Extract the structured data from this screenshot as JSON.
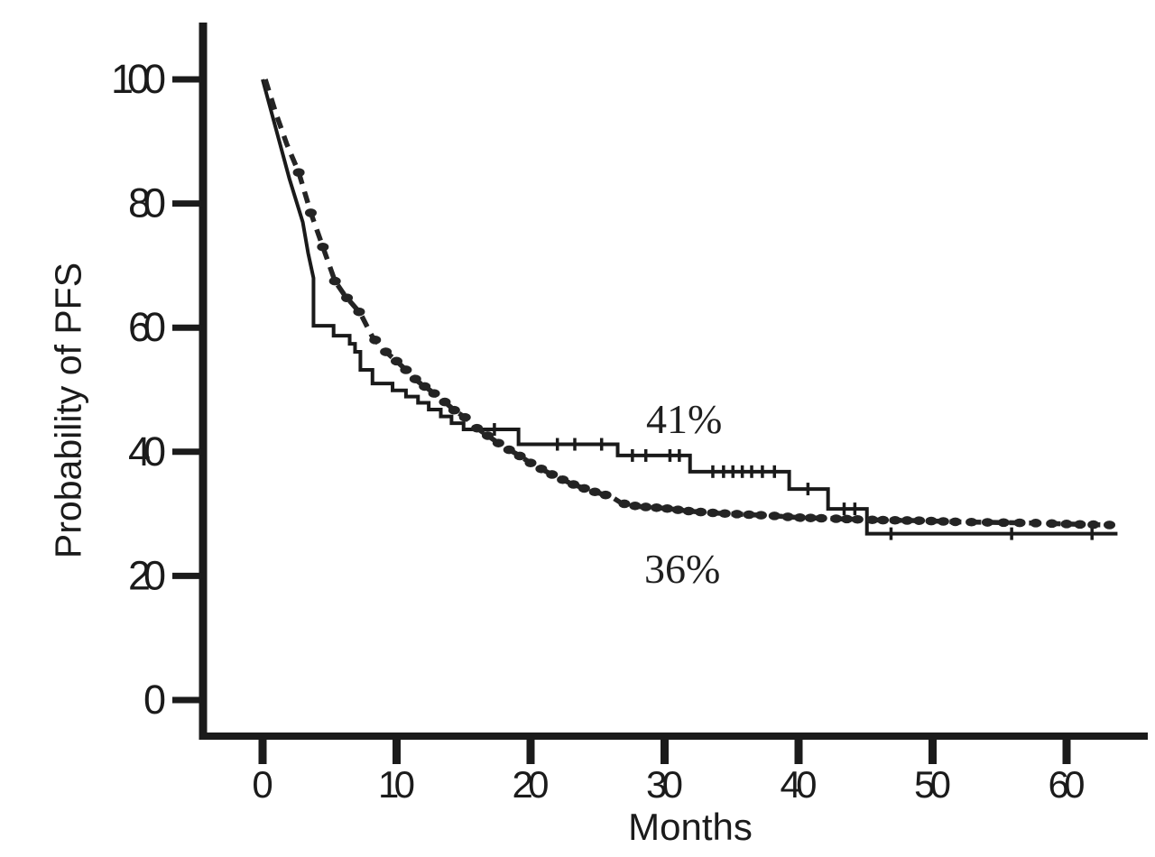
{
  "figure": {
    "background": "#ffffff",
    "ink_color": "#1b1b1b"
  },
  "chart_data": {
    "type": "line",
    "chart_kind": "kaplan-meier-survival",
    "title": "",
    "xlabel": "Months",
    "ylabel": "Probability of PFS",
    "xlim": [
      0,
      64
    ],
    "ylim": [
      0,
      100
    ],
    "x_ticks": [
      0,
      10,
      20,
      30,
      40,
      50,
      60
    ],
    "y_ticks": [
      0,
      20,
      40,
      60,
      80,
      100
    ],
    "grid": false,
    "legend": "none",
    "annotations": [
      {
        "text": "41%",
        "refers_to": "solid step curve"
      },
      {
        "text": "36%",
        "refers_to": "dashed curve"
      }
    ],
    "series": [
      {
        "name": "solid step curve",
        "style": "solid",
        "color": "#1a1a1a",
        "line_width": 4,
        "end_label": "41%",
        "points": [
          [
            0,
            100
          ],
          [
            1,
            92
          ],
          [
            2,
            84
          ],
          [
            3,
            77
          ],
          [
            3.4,
            72
          ],
          [
            3.8,
            68
          ],
          [
            3.8,
            60.3
          ],
          [
            5.3,
            60.3
          ],
          [
            5.3,
            58.7
          ],
          [
            6.5,
            58.7
          ],
          [
            6.5,
            57.4
          ],
          [
            6.9,
            57.4
          ],
          [
            6.9,
            56.1
          ],
          [
            7.3,
            56.1
          ],
          [
            7.3,
            53.2
          ],
          [
            8.2,
            53.2
          ],
          [
            8.2,
            51
          ],
          [
            9.7,
            51
          ],
          [
            9.7,
            49.9
          ],
          [
            10.7,
            49.9
          ],
          [
            10.7,
            48.9
          ],
          [
            11.6,
            48.9
          ],
          [
            11.6,
            47.9
          ],
          [
            12.4,
            47.9
          ],
          [
            12.4,
            46.8
          ],
          [
            13.3,
            46.8
          ],
          [
            13.3,
            45.7
          ],
          [
            14.1,
            45.7
          ],
          [
            14.1,
            44.6
          ],
          [
            15,
            44.6
          ],
          [
            15,
            43.6
          ],
          [
            15.9,
            43.6
          ],
          [
            19.1,
            43.6
          ],
          [
            19.1,
            41.2
          ],
          [
            26.5,
            41.2
          ],
          [
            26.5,
            39.4
          ],
          [
            31.9,
            39.4
          ],
          [
            31.9,
            36.8
          ],
          [
            39.3,
            36.8
          ],
          [
            39.3,
            34
          ],
          [
            42.2,
            34
          ],
          [
            42.2,
            30.8
          ],
          [
            45.1,
            30.8
          ],
          [
            45.1,
            26.8
          ],
          [
            63.8,
            26.8
          ]
        ],
        "censor_tick_months": [
          17.3,
          22,
          23.3,
          25.3,
          27.6,
          28.6,
          30.4,
          31.1,
          33.6,
          34.4,
          35.1,
          35.8,
          36.5,
          37.3,
          38.2,
          40.7,
          43.4,
          44.2,
          46.9,
          55.9,
          61.9
        ]
      },
      {
        "name": "dashed curve",
        "style": "dashed",
        "color": "#242424",
        "line_width": 5.5,
        "dash": "13 9",
        "end_label": "36%",
        "points": [
          [
            0.2,
            100
          ],
          [
            1,
            94.5
          ],
          [
            1.8,
            89.6
          ],
          [
            2.7,
            85
          ],
          [
            3.6,
            78.5
          ],
          [
            4.5,
            73
          ],
          [
            5.4,
            67.5
          ],
          [
            6.1,
            65.3
          ],
          [
            6.7,
            63.8
          ],
          [
            7.3,
            62.3
          ],
          [
            8.2,
            58.5
          ],
          [
            9.2,
            56.1
          ],
          [
            10,
            54.6
          ],
          [
            10.7,
            53.2
          ],
          [
            11.6,
            51.3
          ],
          [
            12.5,
            49.9
          ],
          [
            13.4,
            48.4
          ],
          [
            14.3,
            46.7
          ],
          [
            15.2,
            45.4
          ],
          [
            16,
            43.8
          ],
          [
            17,
            42.3
          ],
          [
            18,
            40.8
          ],
          [
            19,
            39.6
          ],
          [
            20,
            38.2
          ],
          [
            21,
            37
          ],
          [
            22,
            35.9
          ],
          [
            23,
            34.9
          ],
          [
            24,
            34.1
          ],
          [
            25,
            33.4
          ],
          [
            26,
            32.8
          ],
          [
            26.8,
            31.7
          ],
          [
            28,
            31.2
          ],
          [
            30,
            30.9
          ],
          [
            32,
            30.4
          ],
          [
            34,
            30.1
          ],
          [
            36,
            29.9
          ],
          [
            38,
            29.7
          ],
          [
            40,
            29.4
          ],
          [
            43,
            29.2
          ],
          [
            46,
            29
          ],
          [
            49,
            28.9
          ],
          [
            52,
            28.7
          ],
          [
            55,
            28.6
          ],
          [
            58,
            28.5
          ],
          [
            61,
            28.3
          ],
          [
            63.4,
            28.2
          ]
        ],
        "marker_months": [
          2.7,
          3.6,
          4.5,
          5.4,
          6.3,
          7.2,
          8.4,
          9.2,
          10,
          10.7,
          11.4,
          12.1,
          12.8,
          13.6,
          14.3,
          15.1,
          16,
          16.8,
          17.6,
          18.4,
          19.2,
          20,
          20.8,
          21.6,
          22.4,
          23.2,
          24,
          24.8,
          25.6,
          27,
          27.8,
          28.6,
          29.4,
          30.2,
          31,
          31.8,
          32.7,
          33.6,
          34.5,
          35.4,
          36.3,
          37.2,
          38.2,
          39.2,
          40.1,
          40.9,
          41.7,
          42.8,
          43.6,
          44.4,
          45.5,
          46.3,
          47.2,
          48.1,
          49,
          49.9,
          50.8,
          51.7,
          52.9,
          54.1,
          55.3,
          56.5,
          57.7,
          58.9,
          60,
          61,
          62,
          63.2
        ]
      }
    ]
  }
}
